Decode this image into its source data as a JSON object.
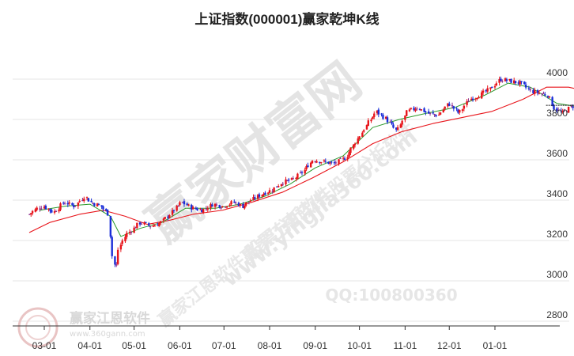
{
  "chart_data": {
    "type": "candlestick",
    "title": "上证指数(000001)赢家乾坤K线",
    "ylim": [
      2800,
      4100
    ],
    "y_ticks": [
      4000,
      3800,
      3600,
      3400,
      3200,
      3000,
      2800
    ],
    "x_tick_labels": [
      "03-01",
      "04-01",
      "05-01",
      "06-01",
      "07-01",
      "08-01",
      "09-01",
      "10-01",
      "11-01",
      "12-01",
      "01-01"
    ],
    "grid": true,
    "up_color": "#e8141a",
    "down_color": "#1a2ed8",
    "neutral_color": "#8a2a8a",
    "short_ma_color": "#2a9a2a",
    "long_ma_color": "#e8141a",
    "projection_color": "#111111",
    "projection_level": 3870,
    "series": [
      {
        "name": "close",
        "points": [
          [
            "2021-02-19",
            3330
          ],
          [
            "2021-02-25",
            3360
          ],
          [
            "2021-03-01",
            3370
          ],
          [
            "2021-03-08",
            3340
          ],
          [
            "2021-03-15",
            3390
          ],
          [
            "2021-03-22",
            3370
          ],
          [
            "2021-03-29",
            3420
          ],
          [
            "2021-04-02",
            3390
          ],
          [
            "2021-04-09",
            3370
          ],
          [
            "2021-04-14",
            3330
          ],
          [
            "2021-04-16",
            3140
          ],
          [
            "2021-04-19",
            3050
          ],
          [
            "2021-04-21",
            3160
          ],
          [
            "2021-04-26",
            3230
          ],
          [
            "2021-05-06",
            3290
          ],
          [
            "2021-05-13",
            3270
          ],
          [
            "2021-05-20",
            3290
          ],
          [
            "2021-05-27",
            3340
          ],
          [
            "2021-06-03",
            3390
          ],
          [
            "2021-06-10",
            3360
          ],
          [
            "2021-06-17",
            3350
          ],
          [
            "2021-06-24",
            3380
          ],
          [
            "2021-07-01",
            3370
          ],
          [
            "2021-07-08",
            3390
          ],
          [
            "2021-07-14",
            3370
          ],
          [
            "2021-07-20",
            3400
          ],
          [
            "2021-07-27",
            3430
          ],
          [
            "2021-08-03",
            3450
          ],
          [
            "2021-08-10",
            3490
          ],
          [
            "2021-08-17",
            3500
          ],
          [
            "2021-08-24",
            3540
          ],
          [
            "2021-08-31",
            3600
          ],
          [
            "2021-09-07",
            3590
          ],
          [
            "2021-09-14",
            3580
          ],
          [
            "2021-09-22",
            3610
          ],
          [
            "2021-09-29",
            3690
          ],
          [
            "2021-10-08",
            3790
          ],
          [
            "2021-10-13",
            3840
          ],
          [
            "2021-10-20",
            3800
          ],
          [
            "2021-10-27",
            3740
          ],
          [
            "2021-11-03",
            3840
          ],
          [
            "2021-11-10",
            3860
          ],
          [
            "2021-11-17",
            3830
          ],
          [
            "2021-11-24",
            3820
          ],
          [
            "2021-12-01",
            3880
          ],
          [
            "2021-12-08",
            3830
          ],
          [
            "2021-12-15",
            3900
          ],
          [
            "2021-12-22",
            3920
          ],
          [
            "2021-12-29",
            3950
          ],
          [
            "2022-01-05",
            4000
          ],
          [
            "2022-01-12",
            3990
          ],
          [
            "2022-01-19",
            3980
          ],
          [
            "2022-01-26",
            3940
          ],
          [
            "2022-02-07",
            3920
          ],
          [
            "2022-02-10",
            3860
          ],
          [
            "2022-02-16",
            3830
          ],
          [
            "2022-02-22",
            3860
          ],
          [
            "2022-02-28",
            3880
          ],
          [
            "2022-03-03",
            3890
          ],
          [
            "2022-03-08",
            3880
          ],
          [
            "2022-03-10",
            3870
          ]
        ]
      },
      {
        "name": "short_ma",
        "points": [
          [
            "2021-02-26",
            3350
          ],
          [
            "2021-03-15",
            3370
          ],
          [
            "2021-04-01",
            3380
          ],
          [
            "2021-04-15",
            3320
          ],
          [
            "2021-04-22",
            3220
          ],
          [
            "2021-05-05",
            3260
          ],
          [
            "2021-05-20",
            3290
          ],
          [
            "2021-06-05",
            3360
          ],
          [
            "2021-06-25",
            3360
          ],
          [
            "2021-07-12",
            3380
          ],
          [
            "2021-07-29",
            3420
          ],
          [
            "2021-08-15",
            3480
          ],
          [
            "2021-09-01",
            3560
          ],
          [
            "2021-09-20",
            3620
          ],
          [
            "2021-10-10",
            3760
          ],
          [
            "2021-10-28",
            3800
          ],
          [
            "2021-11-15",
            3830
          ],
          [
            "2021-12-05",
            3860
          ],
          [
            "2021-12-25",
            3920
          ],
          [
            "2022-01-10",
            3980
          ],
          [
            "2022-01-25",
            3960
          ],
          [
            "2022-02-12",
            3880
          ],
          [
            "2022-03-01",
            3860
          ]
        ]
      },
      {
        "name": "long_ma",
        "points": [
          [
            "2021-02-19",
            3240
          ],
          [
            "2021-03-05",
            3290
          ],
          [
            "2021-03-25",
            3330
          ],
          [
            "2021-04-10",
            3350
          ],
          [
            "2021-04-25",
            3320
          ],
          [
            "2021-05-10",
            3280
          ],
          [
            "2021-05-25",
            3300
          ],
          [
            "2021-06-10",
            3330
          ],
          [
            "2021-06-30",
            3350
          ],
          [
            "2021-07-20",
            3390
          ],
          [
            "2021-08-10",
            3440
          ],
          [
            "2021-08-30",
            3510
          ],
          [
            "2021-09-20",
            3590
          ],
          [
            "2021-10-10",
            3680
          ],
          [
            "2021-10-30",
            3740
          ],
          [
            "2021-11-20",
            3780
          ],
          [
            "2021-12-10",
            3810
          ],
          [
            "2021-12-30",
            3840
          ],
          [
            "2022-01-20",
            3900
          ],
          [
            "2022-02-05",
            3960
          ],
          [
            "2022-02-20",
            3960
          ],
          [
            "2022-03-05",
            3940
          ]
        ]
      }
    ]
  },
  "watermarks": {
    "main": "赢家财富网",
    "diagonal_1": "赢家江恩软件 股票分析软件",
    "diagonal_2": "赢家江恩软件 股票分析软件",
    "url": "www.yingjia360.com",
    "qq": "QQ:100800360",
    "logo_text": "赢家江恩软件",
    "logo_url": "www.360gann.com"
  }
}
